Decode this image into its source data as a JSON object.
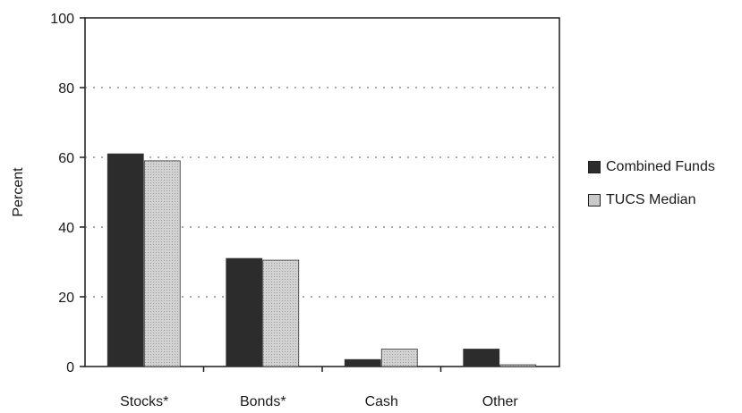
{
  "chart_data": {
    "type": "bar",
    "title": "",
    "xlabel": "",
    "ylabel": "Percent",
    "ylim": [
      0,
      100
    ],
    "yticks": [
      0,
      20,
      40,
      60,
      80,
      100
    ],
    "categories": [
      "Stocks*",
      "Bonds*",
      "Cash",
      "Other"
    ],
    "series": [
      {
        "name": "Combined Funds",
        "values": [
          61,
          31,
          2,
          5
        ],
        "color": "#2c2c2c"
      },
      {
        "name": "TUCS Median",
        "values": [
          59,
          30.5,
          5,
          0.5
        ],
        "color": "#c9c9c9"
      }
    ],
    "grid": true,
    "legend_position": "right"
  }
}
